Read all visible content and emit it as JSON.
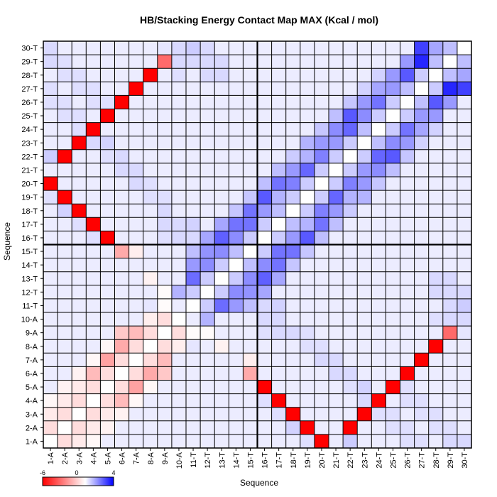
{
  "chart_data": {
    "type": "heatmap",
    "title": "HB/Stacking Energy Contact Map MAX (Kcal / mol)",
    "xlabel": "Sequence",
    "ylabel": "Sequence",
    "labels": [
      "1-A",
      "2-A",
      "3-A",
      "4-A",
      "5-A",
      "6-A",
      "7-A",
      "8-A",
      "9-A",
      "10-A",
      "11-T",
      "12-T",
      "13-T",
      "14-T",
      "15-T",
      "16-T",
      "17-T",
      "18-T",
      "19-T",
      "20-T",
      "21-T",
      "22-T",
      "23-T",
      "24-T",
      "25-T",
      "26-T",
      "27-T",
      "28-T",
      "29-T",
      "30-T"
    ],
    "color_scale": {
      "min": -6,
      "max": 4,
      "low_color": "#ff0000",
      "mid_color": "#ffffff",
      "high_color": "#0000ff",
      "mid_value": 0
    },
    "legend_ticks": [
      "-6",
      "0",
      "4"
    ],
    "divider_after_index": 15,
    "default_value": 0.3,
    "cells": [
      [
        0,
        1,
        -0.8
      ],
      [
        1,
        2,
        -0.8
      ],
      [
        2,
        3,
        -0.8
      ],
      [
        3,
        4,
        -0.8
      ],
      [
        4,
        5,
        -0.8
      ],
      [
        5,
        6,
        -0.8
      ],
      [
        6,
        7,
        -0.8
      ],
      [
        7,
        8,
        -0.8
      ],
      [
        8,
        9,
        -0.8
      ],
      [
        10,
        11,
        0.8
      ],
      [
        11,
        12,
        0.8
      ],
      [
        12,
        13,
        0.8
      ],
      [
        13,
        14,
        1.0
      ],
      [
        14,
        15,
        0.8
      ],
      [
        15,
        16,
        0.8
      ],
      [
        16,
        17,
        1.0
      ],
      [
        17,
        18,
        0.8
      ],
      [
        18,
        19,
        0.8
      ],
      [
        19,
        20,
        0.8
      ],
      [
        20,
        21,
        0.8
      ],
      [
        21,
        22,
        0.8
      ],
      [
        22,
        23,
        1.0
      ],
      [
        23,
        24,
        0.8
      ],
      [
        24,
        25,
        0.8
      ],
      [
        25,
        26,
        1.0
      ],
      [
        26,
        27,
        0.8
      ],
      [
        27,
        28,
        1.0
      ],
      [
        28,
        29,
        1.0
      ],
      [
        0,
        2,
        -0.5
      ],
      [
        1,
        3,
        -0.5
      ],
      [
        2,
        4,
        -0.5
      ],
      [
        3,
        5,
        -1.6
      ],
      [
        4,
        6,
        -2.2
      ],
      [
        5,
        7,
        -2.0
      ],
      [
        6,
        8,
        -1.6
      ],
      [
        7,
        9,
        -0.4
      ],
      [
        8,
        10,
        -0.1
      ],
      [
        9,
        11,
        1.2
      ],
      [
        10,
        12,
        2.3
      ],
      [
        11,
        13,
        1.8
      ],
      [
        12,
        14,
        1.8
      ],
      [
        13,
        15,
        1.8
      ],
      [
        14,
        16,
        2.2
      ],
      [
        15,
        17,
        1.6
      ],
      [
        16,
        18,
        1.2
      ],
      [
        17,
        19,
        2.0
      ],
      [
        18,
        20,
        2.4
      ],
      [
        19,
        21,
        2.0
      ],
      [
        20,
        22,
        1.6
      ],
      [
        21,
        23,
        2.4
      ],
      [
        22,
        24,
        1.8
      ],
      [
        23,
        25,
        2.2
      ],
      [
        24,
        26,
        1.6
      ],
      [
        25,
        27,
        2.6
      ],
      [
        26,
        28,
        3.4
      ],
      [
        27,
        29,
        1.4
      ],
      [
        0,
        3,
        -0.2
      ],
      [
        1,
        4,
        -0.3
      ],
      [
        2,
        5,
        -0.3
      ],
      [
        3,
        6,
        -0.2
      ],
      [
        4,
        7,
        -0.2
      ],
      [
        5,
        8,
        -1.3
      ],
      [
        7,
        10,
        0.4
      ],
      [
        10,
        13,
        1.6
      ],
      [
        11,
        14,
        1.7
      ],
      [
        12,
        15,
        2.5
      ],
      [
        13,
        16,
        2.2
      ],
      [
        14,
        17,
        2.2
      ],
      [
        15,
        18,
        2.6
      ],
      [
        16,
        19,
        2.2
      ],
      [
        17,
        20,
        1.6
      ],
      [
        18,
        21,
        1.2
      ],
      [
        19,
        22,
        1.6
      ],
      [
        20,
        23,
        1.8
      ],
      [
        21,
        24,
        2.6
      ],
      [
        22,
        25,
        1.6
      ],
      [
        23,
        26,
        1.4
      ],
      [
        24,
        27,
        1.6
      ],
      [
        25,
        28,
        1.6
      ],
      [
        26,
        29,
        3.0
      ],
      [
        10,
        14,
        1.0
      ],
      [
        11,
        15,
        1.4
      ],
      [
        12,
        16,
        1.4
      ],
      [
        13,
        17,
        0.9
      ],
      [
        14,
        18,
        0.9
      ],
      [
        15,
        19,
        1.0
      ],
      [
        16,
        20,
        1.0
      ],
      [
        17,
        21,
        0.8
      ],
      [
        18,
        22,
        1.2
      ],
      [
        19,
        23,
        0.9
      ],
      [
        20,
        24,
        1.0
      ],
      [
        21,
        25,
        0.9
      ],
      [
        22,
        26,
        0.7
      ],
      [
        23,
        27,
        0.7
      ],
      [
        9,
        15,
        0.6
      ],
      [
        9,
        16,
        0.6
      ],
      [
        8,
        16,
        0.6
      ],
      [
        8,
        17,
        0.6
      ],
      [
        10,
        15,
        0.6
      ],
      [
        10,
        16,
        0.7
      ],
      [
        8,
        15,
        0.5
      ],
      [
        8,
        18,
        0.5
      ],
      [
        7,
        18,
        0.5
      ],
      [
        7,
        19,
        0.5
      ],
      [
        6,
        19,
        0.6
      ],
      [
        6,
        20,
        0.6
      ],
      [
        5,
        20,
        0.6
      ],
      [
        5,
        21,
        0.6
      ],
      [
        4,
        21,
        0.5
      ],
      [
        4,
        22,
        0.7
      ],
      [
        3,
        22,
        0.6
      ],
      [
        3,
        23,
        0.6
      ],
      [
        2,
        23,
        0.5
      ],
      [
        2,
        24,
        0.5
      ],
      [
        1,
        24,
        0.5
      ],
      [
        1,
        25,
        0.5
      ],
      [
        0,
        25,
        0.5
      ],
      [
        0,
        26,
        0.5
      ],
      [
        0,
        21,
        0.8
      ],
      [
        0,
        19,
        1.0
      ],
      [
        11,
        27,
        0.6
      ],
      [
        12,
        27,
        0.6
      ],
      [
        12,
        28,
        0.6
      ],
      [
        11,
        28,
        0.6
      ],
      [
        10,
        29,
        0.8
      ],
      [
        11,
        29,
        0.6
      ],
      [
        10,
        28,
        0.6
      ],
      [
        0,
        18,
        0.5
      ],
      [
        1,
        17,
        0.7
      ],
      [
        2,
        16,
        0.5
      ],
      [
        3,
        15,
        0.5
      ],
      [
        2,
        17,
        0.5
      ],
      [
        1,
        18,
        0.5
      ],
      [
        0,
        29,
        0.6
      ],
      [
        0,
        28,
        0.6
      ],
      [
        1,
        28,
        0.5
      ],
      [
        1,
        27,
        0.5
      ],
      [
        2,
        27,
        0.5
      ],
      [
        2,
        26,
        0.5
      ],
      [
        3,
        26,
        0.5
      ],
      [
        3,
        25,
        0.5
      ],
      [
        4,
        25,
        0.5
      ],
      [
        4,
        24,
        0.5
      ],
      [
        0,
        14,
        0.3
      ],
      [
        0,
        15,
        0.3
      ],
      [
        1,
        15,
        0.3
      ],
      [
        0,
        16,
        0.3
      ],
      [
        1,
        16,
        0.3
      ],
      [
        2,
        15,
        0.3
      ],
      [
        9,
        28,
        0.6
      ],
      [
        9,
        29,
        0.6
      ],
      [
        8,
        29,
        0.4
      ],
      [
        8,
        28,
        0.4
      ],
      [
        9,
        27,
        0.5
      ]
    ],
    "pairs": [
      [
        0,
        19,
        -6
      ],
      [
        1,
        18,
        -6
      ],
      [
        2,
        17,
        -6
      ],
      [
        3,
        16,
        -6
      ],
      [
        4,
        15,
        -6
      ],
      [
        5,
        14,
        -2
      ],
      [
        1,
        21,
        -6
      ],
      [
        2,
        22,
        -6
      ],
      [
        3,
        23,
        -6
      ],
      [
        4,
        24,
        -6
      ],
      [
        5,
        25,
        -6
      ],
      [
        6,
        26,
        -6
      ],
      [
        7,
        27,
        -6
      ],
      [
        8,
        28,
        -3.5
      ],
      [
        6,
        14,
        -0.4
      ],
      [
        7,
        12,
        -0.3
      ],
      [
        8,
        11,
        -0.1
      ]
    ]
  }
}
